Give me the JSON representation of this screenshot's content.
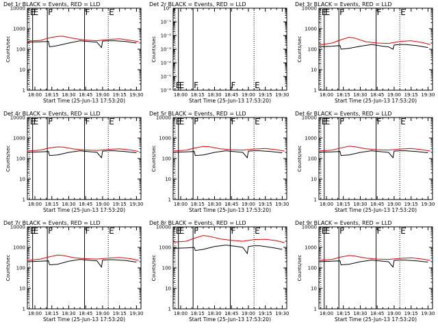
{
  "chart_data": [
    {
      "type": "line",
      "title": "Det 1r BLACK = Events, RED = LLD",
      "xlabel": "Start Time (25-Jun-13 17:53:20)",
      "ylabel": "Counts/sec",
      "y_scale": "log",
      "ylim": [
        1,
        10000
      ],
      "y_tick_labels": [
        "1",
        "10",
        "100",
        "1000",
        "10000"
      ],
      "x_tick_labels": [
        "18:00",
        "18:15",
        "18:30",
        "18:45",
        "19:00",
        "19:15",
        "19:30"
      ],
      "markers": [
        {
          "label": "E",
          "style": "dotted",
          "time": "17:55"
        },
        {
          "label": "E",
          "style": "solid",
          "time": "17:58"
        },
        {
          "label": "F",
          "style": "solid",
          "time": "18:11"
        },
        {
          "label": "F",
          "style": "solid",
          "time": "18:44"
        },
        {
          "label": "E",
          "style": "dotted",
          "time": "19:05"
        }
      ],
      "series": [
        {
          "name": "Events",
          "color": "#000000",
          "x": [
            "17:53",
            "18:05",
            "18:12",
            "18:13",
            "18:20",
            "18:30",
            "18:40",
            "18:50",
            "18:55",
            "18:59",
            "19:00",
            "19:05",
            "19:10",
            "19:20",
            "19:30"
          ],
          "values": [
            220,
            230,
            240,
            130,
            150,
            200,
            260,
            230,
            220,
            120,
            250,
            260,
            260,
            240,
            200
          ]
        },
        {
          "name": "LLD",
          "color": "#e00000",
          "x": [
            "17:53",
            "18:05",
            "18:12",
            "18:20",
            "18:25",
            "18:35",
            "18:45",
            "18:55",
            "19:05",
            "19:15",
            "19:25",
            "19:32"
          ],
          "values": [
            250,
            270,
            350,
            420,
            430,
            330,
            280,
            260,
            300,
            320,
            270,
            230
          ]
        }
      ]
    },
    {
      "type": "line",
      "title": "Det 2r BLACK = Events, RED = LLD",
      "xlabel": "Start Time (25-Jun-13 17:53:20)",
      "ylabel": "Counts/sec",
      "y_scale": "log",
      "ylim": [
        1e-06,
        1
      ],
      "y_tick_labels": [
        "10⁻⁶",
        "10⁻⁵",
        "10⁻⁴",
        "10⁻³",
        "10⁻²",
        "10⁻¹",
        "10⁰"
      ],
      "x_tick_labels": [
        "18:00",
        "18:15",
        "18:30",
        "18:45",
        "19:00",
        "19:15",
        "19:30"
      ],
      "markers": [
        {
          "label": "E",
          "style": "dotted",
          "time": "17:55"
        },
        {
          "label": "E",
          "style": "solid",
          "time": "17:58"
        },
        {
          "label": "F",
          "style": "solid",
          "time": "18:11"
        },
        {
          "label": "F",
          "style": "solid",
          "time": "18:44"
        },
        {
          "label": "E",
          "style": "dotted",
          "time": "19:05"
        }
      ],
      "series": []
    },
    {
      "type": "line",
      "title": "Det 3r BLACK = Events, RED = LLD",
      "xlabel": "Start Time (25-Jun-13 17:53:20)",
      "ylabel": "Counts/sec",
      "y_scale": "log",
      "ylim": [
        1,
        10000
      ],
      "y_tick_labels": [
        "1",
        "10",
        "100",
        "1000",
        "10000"
      ],
      "x_tick_labels": [
        "18:00",
        "18:15",
        "18:30",
        "18:45",
        "19:00",
        "19:15",
        "19:30"
      ],
      "markers": [
        {
          "label": "E",
          "style": "dotted",
          "time": "17:55"
        },
        {
          "label": "E",
          "style": "solid",
          "time": "17:58"
        },
        {
          "label": "F",
          "style": "solid",
          "time": "18:11"
        },
        {
          "label": "F",
          "style": "solid",
          "time": "18:44"
        },
        {
          "label": "E",
          "style": "dotted",
          "time": "19:05"
        }
      ],
      "series": [
        {
          "name": "Events",
          "color": "#000000",
          "x": [
            "17:53",
            "18:05",
            "18:12",
            "18:13",
            "18:20",
            "18:30",
            "18:40",
            "18:50",
            "18:55",
            "18:59",
            "19:00",
            "19:05",
            "19:10",
            "19:20",
            "19:30"
          ],
          "values": [
            130,
            140,
            150,
            100,
            110,
            140,
            170,
            140,
            130,
            100,
            160,
            170,
            170,
            150,
            120
          ]
        },
        {
          "name": "LLD",
          "color": "#e00000",
          "x": [
            "17:53",
            "18:05",
            "18:12",
            "18:20",
            "18:25",
            "18:35",
            "18:45",
            "18:55",
            "19:05",
            "19:15",
            "19:25",
            "19:32"
          ],
          "values": [
            160,
            200,
            280,
            380,
            350,
            230,
            200,
            190,
            240,
            260,
            210,
            170
          ]
        }
      ]
    },
    {
      "type": "line",
      "title": "Det 4r BLACK = Events, RED = LLD",
      "xlabel": "Start Time (25-Jun-13 17:53:20)",
      "ylabel": "Counts/sec",
      "y_scale": "log",
      "ylim": [
        1,
        10000
      ],
      "y_tick_labels": [
        "1",
        "10",
        "100",
        "1000",
        "10000"
      ],
      "x_tick_labels": [
        "18:00",
        "18:15",
        "18:30",
        "18:45",
        "19:00",
        "19:15",
        "19:30"
      ],
      "markers": [
        {
          "label": "E",
          "style": "dotted",
          "time": "17:55"
        },
        {
          "label": "E",
          "style": "solid",
          "time": "17:58"
        },
        {
          "label": "F",
          "style": "solid",
          "time": "18:11"
        },
        {
          "label": "F",
          "style": "solid",
          "time": "18:44"
        },
        {
          "label": "E",
          "style": "dotted",
          "time": "19:05"
        }
      ],
      "series": [
        {
          "name": "Events",
          "color": "#000000",
          "x": [
            "17:53",
            "18:05",
            "18:12",
            "18:13",
            "18:20",
            "18:30",
            "18:40",
            "18:50",
            "18:55",
            "18:59",
            "19:00",
            "19:05",
            "19:10",
            "19:20",
            "19:30"
          ],
          "values": [
            200,
            210,
            220,
            140,
            150,
            200,
            240,
            210,
            200,
            110,
            230,
            240,
            240,
            220,
            190
          ]
        },
        {
          "name": "LLD",
          "color": "#e00000",
          "x": [
            "17:53",
            "18:05",
            "18:12",
            "18:20",
            "18:25",
            "18:35",
            "18:45",
            "18:55",
            "19:05",
            "19:15",
            "19:25",
            "19:32"
          ],
          "values": [
            230,
            260,
            320,
            370,
            360,
            290,
            260,
            250,
            280,
            300,
            260,
            220
          ]
        }
      ]
    },
    {
      "type": "line",
      "title": "Det 5r BLACK = Events, RED = LLD",
      "xlabel": "Start Time (25-Jun-13 17:53:20)",
      "ylabel": "Counts/sec",
      "y_scale": "log",
      "ylim": [
        1,
        10000
      ],
      "y_tick_labels": [
        "1",
        "10",
        "100",
        "1000",
        "10000"
      ],
      "x_tick_labels": [
        "18:00",
        "18:15",
        "18:30",
        "18:45",
        "19:00",
        "19:15",
        "19:30"
      ],
      "markers": [
        {
          "label": "E",
          "style": "dotted",
          "time": "17:55"
        },
        {
          "label": "E",
          "style": "solid",
          "time": "17:58"
        },
        {
          "label": "F",
          "style": "solid",
          "time": "18:11"
        },
        {
          "label": "F",
          "style": "solid",
          "time": "18:44"
        },
        {
          "label": "E",
          "style": "dotted",
          "time": "19:05"
        }
      ],
      "series": [
        {
          "name": "Events",
          "color": "#000000",
          "x": [
            "17:53",
            "18:05",
            "18:12",
            "18:13",
            "18:20",
            "18:30",
            "18:40",
            "18:50",
            "18:55",
            "18:59",
            "19:00",
            "19:05",
            "19:10",
            "19:20",
            "19:30"
          ],
          "values": [
            200,
            210,
            220,
            140,
            150,
            200,
            240,
            210,
            200,
            110,
            230,
            240,
            240,
            220,
            190
          ]
        },
        {
          "name": "LLD",
          "color": "#e00000",
          "x": [
            "17:53",
            "18:05",
            "18:12",
            "18:20",
            "18:25",
            "18:35",
            "18:45",
            "18:55",
            "19:05",
            "19:15",
            "19:25",
            "19:32"
          ],
          "values": [
            230,
            260,
            320,
            390,
            380,
            300,
            270,
            260,
            290,
            310,
            270,
            230
          ]
        }
      ]
    },
    {
      "type": "line",
      "title": "Det 6r BLACK = Events, RED = LLD",
      "xlabel": "Start Time (25-Jun-13 17:53:20)",
      "ylabel": "Counts/sec",
      "y_scale": "log",
      "ylim": [
        1,
        10000
      ],
      "y_tick_labels": [
        "1",
        "10",
        "100",
        "1000",
        "10000"
      ],
      "x_tick_labels": [
        "18:00",
        "18:15",
        "18:30",
        "18:45",
        "19:00",
        "19:15",
        "19:30"
      ],
      "markers": [
        {
          "label": "E",
          "style": "dotted",
          "time": "17:55"
        },
        {
          "label": "E",
          "style": "solid",
          "time": "17:58"
        },
        {
          "label": "F",
          "style": "solid",
          "time": "18:11"
        },
        {
          "label": "F",
          "style": "solid",
          "time": "18:44"
        },
        {
          "label": "E",
          "style": "dotted",
          "time": "19:05"
        }
      ],
      "series": [
        {
          "name": "Events",
          "color": "#000000",
          "x": [
            "17:53",
            "18:05",
            "18:12",
            "18:13",
            "18:20",
            "18:30",
            "18:40",
            "18:50",
            "18:55",
            "18:59",
            "19:00",
            "19:05",
            "19:10",
            "19:20",
            "19:30"
          ],
          "values": [
            200,
            210,
            220,
            140,
            150,
            200,
            240,
            210,
            200,
            110,
            230,
            240,
            240,
            220,
            190
          ]
        },
        {
          "name": "LLD",
          "color": "#e00000",
          "x": [
            "17:53",
            "18:05",
            "18:12",
            "18:20",
            "18:25",
            "18:35",
            "18:45",
            "18:55",
            "19:05",
            "19:15",
            "19:25",
            "19:32"
          ],
          "values": [
            230,
            260,
            320,
            400,
            380,
            300,
            270,
            260,
            290,
            310,
            270,
            230
          ]
        }
      ]
    },
    {
      "type": "line",
      "title": "Det 7r BLACK = Events, RED = LLD",
      "xlabel": "Start Time (25-Jun-13 17:53:20)",
      "ylabel": "Counts/sec",
      "y_scale": "log",
      "ylim": [
        1,
        10000
      ],
      "y_tick_labels": [
        "1",
        "10",
        "100",
        "1000",
        "10000"
      ],
      "x_tick_labels": [
        "18:00",
        "18:15",
        "18:30",
        "18:45",
        "19:00",
        "19:15",
        "19:30"
      ],
      "markers": [
        {
          "label": "E",
          "style": "dotted",
          "time": "17:55"
        },
        {
          "label": "E",
          "style": "solid",
          "time": "17:58"
        },
        {
          "label": "F",
          "style": "solid",
          "time": "18:11"
        },
        {
          "label": "F",
          "style": "solid",
          "time": "18:44"
        },
        {
          "label": "E",
          "style": "dotted",
          "time": "19:05"
        }
      ],
      "series": [
        {
          "name": "Events",
          "color": "#000000",
          "x": [
            "17:53",
            "18:05",
            "18:12",
            "18:13",
            "18:20",
            "18:30",
            "18:40",
            "18:50",
            "18:55",
            "18:59",
            "19:00",
            "19:05",
            "19:10",
            "19:20",
            "19:30"
          ],
          "values": [
            200,
            210,
            220,
            140,
            150,
            210,
            260,
            230,
            220,
            110,
            240,
            250,
            250,
            230,
            190
          ]
        },
        {
          "name": "LLD",
          "color": "#e00000",
          "x": [
            "17:53",
            "18:05",
            "18:12",
            "18:20",
            "18:25",
            "18:35",
            "18:45",
            "18:55",
            "19:05",
            "19:15",
            "19:25",
            "19:32"
          ],
          "values": [
            230,
            270,
            340,
            420,
            400,
            310,
            280,
            270,
            300,
            320,
            280,
            230
          ]
        }
      ]
    },
    {
      "type": "line",
      "title": "Det 8r BLACK = Events, RED = LLD",
      "xlabel": "Start Time (25-Jun-13 17:53:20)",
      "ylabel": "Counts/sec",
      "y_scale": "log",
      "ylim": [
        1,
        10000
      ],
      "y_tick_labels": [
        "1",
        "10",
        "100",
        "1000",
        "10000"
      ],
      "x_tick_labels": [
        "18:00",
        "18:15",
        "18:30",
        "18:45",
        "19:00",
        "19:15",
        "19:30"
      ],
      "markers": [
        {
          "label": "E",
          "style": "dotted",
          "time": "17:55"
        },
        {
          "label": "E",
          "style": "solid",
          "time": "17:58"
        },
        {
          "label": "F",
          "style": "solid",
          "time": "18:11"
        },
        {
          "label": "F",
          "style": "solid",
          "time": "18:44"
        },
        {
          "label": "E",
          "style": "dotted",
          "time": "19:05"
        }
      ],
      "series": [
        {
          "name": "Events",
          "color": "#000000",
          "x": [
            "17:53",
            "18:05",
            "18:12",
            "18:13",
            "18:20",
            "18:30",
            "18:40",
            "18:50",
            "18:55",
            "18:59",
            "19:00",
            "19:05",
            "19:10",
            "19:20",
            "19:30"
          ],
          "values": [
            900,
            950,
            1000,
            700,
            800,
            1100,
            1300,
            1100,
            1000,
            500,
            1100,
            1200,
            1200,
            1000,
            800
          ]
        },
        {
          "name": "LLD",
          "color": "#e00000",
          "x": [
            "17:53",
            "18:05",
            "18:12",
            "18:20",
            "18:25",
            "18:35",
            "18:45",
            "18:55",
            "19:05",
            "19:15",
            "19:25",
            "19:32"
          ],
          "values": [
            1800,
            2000,
            2800,
            3800,
            3500,
            2600,
            2200,
            2000,
            2400,
            2500,
            2100,
            1700
          ]
        }
      ]
    },
    {
      "type": "line",
      "title": "Det 9r BLACK = Events, RED = LLD",
      "xlabel": "Start Time (25-Jun-13 17:53:20)",
      "ylabel": "Counts/sec",
      "y_scale": "log",
      "ylim": [
        1,
        10000
      ],
      "y_tick_labels": [
        "1",
        "10",
        "100",
        "1000",
        "10000"
      ],
      "x_tick_labels": [
        "18:00",
        "18:15",
        "18:30",
        "18:45",
        "19:00",
        "19:15",
        "19:30"
      ],
      "markers": [
        {
          "label": "E",
          "style": "dotted",
          "time": "17:55"
        },
        {
          "label": "E",
          "style": "solid",
          "time": "17:58"
        },
        {
          "label": "F",
          "style": "solid",
          "time": "18:11"
        },
        {
          "label": "F",
          "style": "solid",
          "time": "18:44"
        },
        {
          "label": "E",
          "style": "dotted",
          "time": "19:05"
        }
      ],
      "series": [
        {
          "name": "Events",
          "color": "#000000",
          "x": [
            "17:53",
            "18:05",
            "18:12",
            "18:13",
            "18:20",
            "18:30",
            "18:40",
            "18:50",
            "18:55",
            "18:59",
            "19:00",
            "19:05",
            "19:10",
            "19:20",
            "19:30"
          ],
          "values": [
            200,
            210,
            220,
            140,
            150,
            200,
            240,
            210,
            200,
            110,
            230,
            240,
            240,
            220,
            190
          ]
        },
        {
          "name": "LLD",
          "color": "#e00000",
          "x": [
            "17:53",
            "18:05",
            "18:12",
            "18:20",
            "18:25",
            "18:35",
            "18:45",
            "18:55",
            "19:05",
            "19:15",
            "19:25",
            "19:32"
          ],
          "values": [
            230,
            260,
            330,
            400,
            380,
            300,
            270,
            260,
            290,
            310,
            270,
            230
          ]
        }
      ]
    }
  ]
}
